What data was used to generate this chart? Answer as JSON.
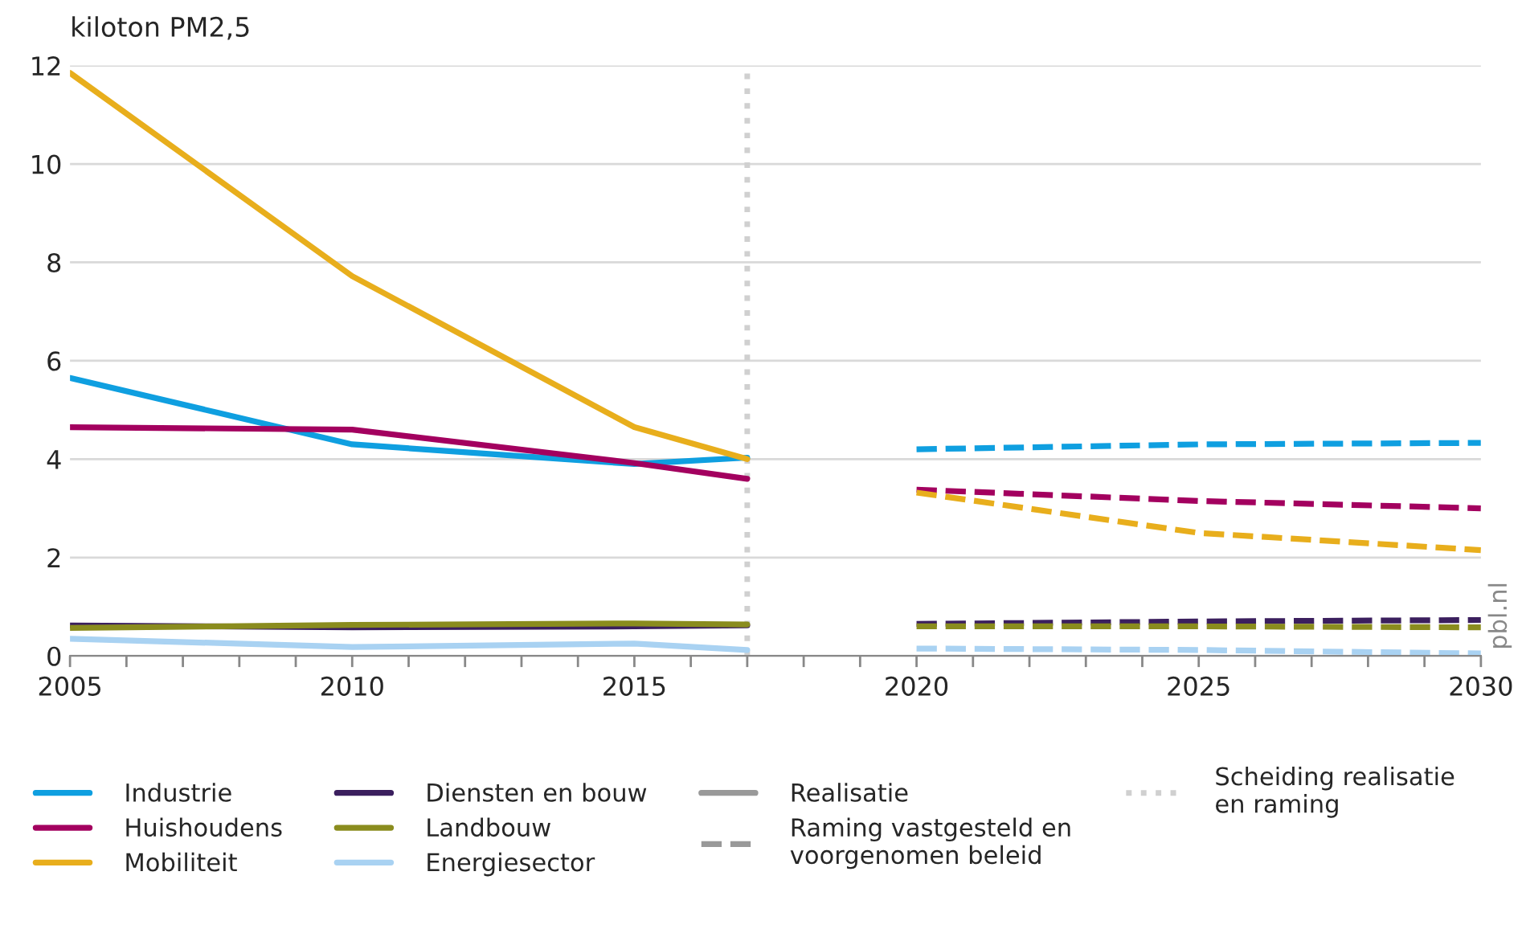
{
  "chart_data": {
    "type": "line",
    "ylabel": "kiloton PM2,5",
    "x": [
      2005,
      2010,
      2015,
      2017
    ],
    "series": [
      {
        "name": "Industrie",
        "color": "#0f9fe0",
        "values": [
          5.65,
          4.3,
          3.9,
          4.03
        ],
        "line_style": "solid"
      },
      {
        "name": "Huishoudens",
        "color": "#a3005f",
        "values": [
          4.65,
          4.6,
          3.92,
          3.6
        ],
        "line_style": "solid"
      },
      {
        "name": "Mobiliteit",
        "color": "#e8ae1c",
        "values": [
          11.85,
          7.72,
          4.65,
          4.0
        ],
        "line_style": "solid"
      },
      {
        "name": "Diensten en bouw",
        "color": "#3b1f5e",
        "values": [
          0.62,
          0.58,
          0.6,
          0.62
        ],
        "line_style": "solid"
      },
      {
        "name": "Landbouw",
        "color": "#8a8c1e",
        "values": [
          0.57,
          0.63,
          0.66,
          0.64
        ],
        "line_style": "solid"
      },
      {
        "name": "Energiesector",
        "color": "#a9d2f2",
        "values": [
          0.35,
          0.18,
          0.25,
          0.12
        ],
        "line_style": "solid"
      },
      {
        "color": "#0f9fe0",
        "x": [
          2020,
          2025,
          2030
        ],
        "values": [
          4.2,
          4.3,
          4.33
        ],
        "line_style": "dashed"
      },
      {
        "color": "#a3005f",
        "x": [
          2020,
          2025,
          2030
        ],
        "values": [
          3.38,
          3.15,
          3.0
        ],
        "line_style": "dashed"
      },
      {
        "color": "#e8ae1c",
        "x": [
          2020,
          2025,
          2030
        ],
        "values": [
          3.32,
          2.5,
          2.15
        ],
        "line_style": "dashed"
      },
      {
        "color": "#3b1f5e",
        "x": [
          2020,
          2025,
          2030
        ],
        "values": [
          0.65,
          0.7,
          0.73
        ],
        "line_style": "dashed"
      },
      {
        "color": "#8a8c1e",
        "x": [
          2020,
          2025,
          2030
        ],
        "values": [
          0.6,
          0.6,
          0.58
        ],
        "line_style": "dashed"
      },
      {
        "color": "#a9d2f2",
        "x": [
          2020,
          2025,
          2030
        ],
        "values": [
          0.15,
          0.12,
          0.05
        ],
        "line_style": "dashed"
      },
      {
        "name": "Realisatie",
        "color": "#999999",
        "values": [
          null,
          null,
          null,
          null
        ],
        "line_style": "solid"
      },
      {
        "name": "Raming vastgesteld en voorgenomen beleid",
        "color": "#999999",
        "values": [
          null,
          null,
          null,
          null
        ],
        "line_style": "dashed"
      }
    ],
    "ref_lines": [
      {
        "axis": "x",
        "value": 2017,
        "label": "Scheiding realisatie en raming",
        "color": "#d0d0d0",
        "line_style": "dotted"
      }
    ],
    "annotations": [
      "pbl.nl"
    ],
    "xlim": [
      2005,
      2030
    ],
    "xticks": [
      2005,
      {
        "value": 2006,
        "label": null
      },
      {
        "value": 2007,
        "label": null
      },
      {
        "value": 2008,
        "label": null
      },
      {
        "value": 2009,
        "label": null
      },
      2010,
      {
        "value": 2011,
        "label": null
      },
      {
        "value": 2012,
        "label": null
      },
      {
        "value": 2013,
        "label": null
      },
      {
        "value": 2014,
        "label": null
      },
      2015,
      {
        "value": 2016,
        "label": null
      },
      {
        "value": 2017,
        "label": null
      },
      {
        "value": 2018,
        "label": null
      },
      {
        "value": 2019,
        "label": null
      },
      2020,
      {
        "value": 2021,
        "label": null
      },
      {
        "value": 2022,
        "label": null
      },
      {
        "value": 2023,
        "label": null
      },
      {
        "value": 2024,
        "label": null
      },
      2025,
      {
        "value": 2026,
        "label": null
      },
      {
        "value": 2027,
        "label": null
      },
      {
        "value": 2028,
        "label": null
      },
      {
        "value": 2029,
        "label": null
      },
      2030
    ],
    "ylim": [
      0,
      12
    ],
    "yticks": [
      0,
      2,
      4,
      6,
      8,
      10,
      12
    ],
    "grid": "y",
    "legend": "bottom"
  }
}
